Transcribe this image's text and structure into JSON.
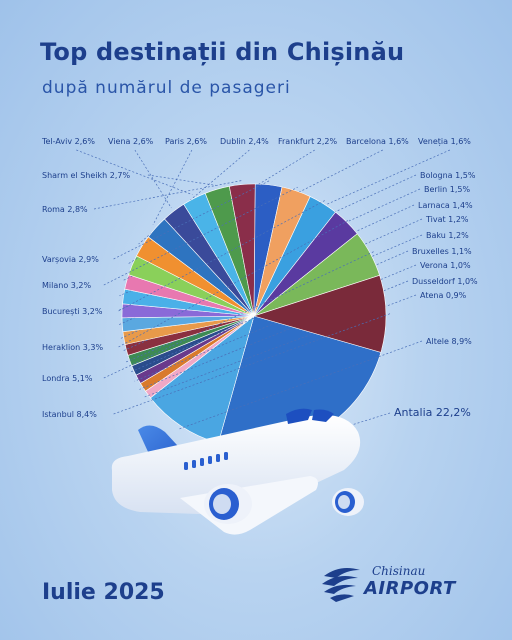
{
  "header": {
    "title": "Top destinații din Chișinău",
    "subtitle": "după numărul de pasageri"
  },
  "footer": {
    "period": "Iulie 2025",
    "logo_top": "Chisinau",
    "logo_bottom": "AIRPORT"
  },
  "colors": {
    "primary": "#1d3f8c",
    "background": "#b8d3f0"
  },
  "icons": [
    "airplane-icon",
    "logo-wings-icon"
  ],
  "chart_data": {
    "type": "pie",
    "title": "Top destinații din Chișinău",
    "categories": [
      "Antalia",
      "Altele",
      "Atena",
      "Dusseldorf",
      "Verona",
      "Bruxelles",
      "Baku",
      "Tivat",
      "Larnaca",
      "Berlin",
      "Bologna",
      "Veneția",
      "Barcelona",
      "Frankfurt",
      "Dublin",
      "Paris",
      "Viena",
      "Tel-Aviv",
      "Sharm el Sheikh",
      "Roma",
      "Varșovia",
      "Milano",
      "București",
      "Heraklion",
      "Londra",
      "Istanbul"
    ],
    "values": [
      22.2,
      8.9,
      0.9,
      1.0,
      1.0,
      1.1,
      1.2,
      1.2,
      1.4,
      1.5,
      1.5,
      1.6,
      1.6,
      2.2,
      2.4,
      2.6,
      2.6,
      2.6,
      2.7,
      2.8,
      2.9,
      3.2,
      3.2,
      3.3,
      5.1,
      8.4
    ],
    "value_labels": [
      "22,2%",
      "8,9%",
      "0,9%",
      "1,0%",
      "1,0%",
      "1,1%",
      "1,2%",
      "1,2%",
      "1,4%",
      "1,5%",
      "1,5%",
      "1,6%",
      "1,6%",
      "2,2%",
      "2,4%",
      "2,6%",
      "2,6%",
      "2,6%",
      "2,7%",
      "2,8%",
      "2,9%",
      "3,2%",
      "3,2%",
      "3,3%",
      "5,1%",
      "8,4%"
    ],
    "colors": [
      "#2f6fc8",
      "#4aa6e2",
      "#f0a8c6",
      "#d97a2c",
      "#6a3a8c",
      "#2a4c8c",
      "#3d8a54",
      "#8a3040",
      "#e89a4a",
      "#5aa8e0",
      "#8a6ad8",
      "#4ab0e8",
      "#e878b0",
      "#8ad05a",
      "#f09030",
      "#2e74c0",
      "#3a4a9a",
      "#4ab4e8",
      "#4e9a4c",
      "#8a2e4a",
      "#2c5ec4",
      "#f0a060",
      "#3aa0e0",
      "#5a3aa0",
      "#7ab85a",
      "#7a2a3a"
    ],
    "legend": "callouts around pie",
    "grid": false
  }
}
